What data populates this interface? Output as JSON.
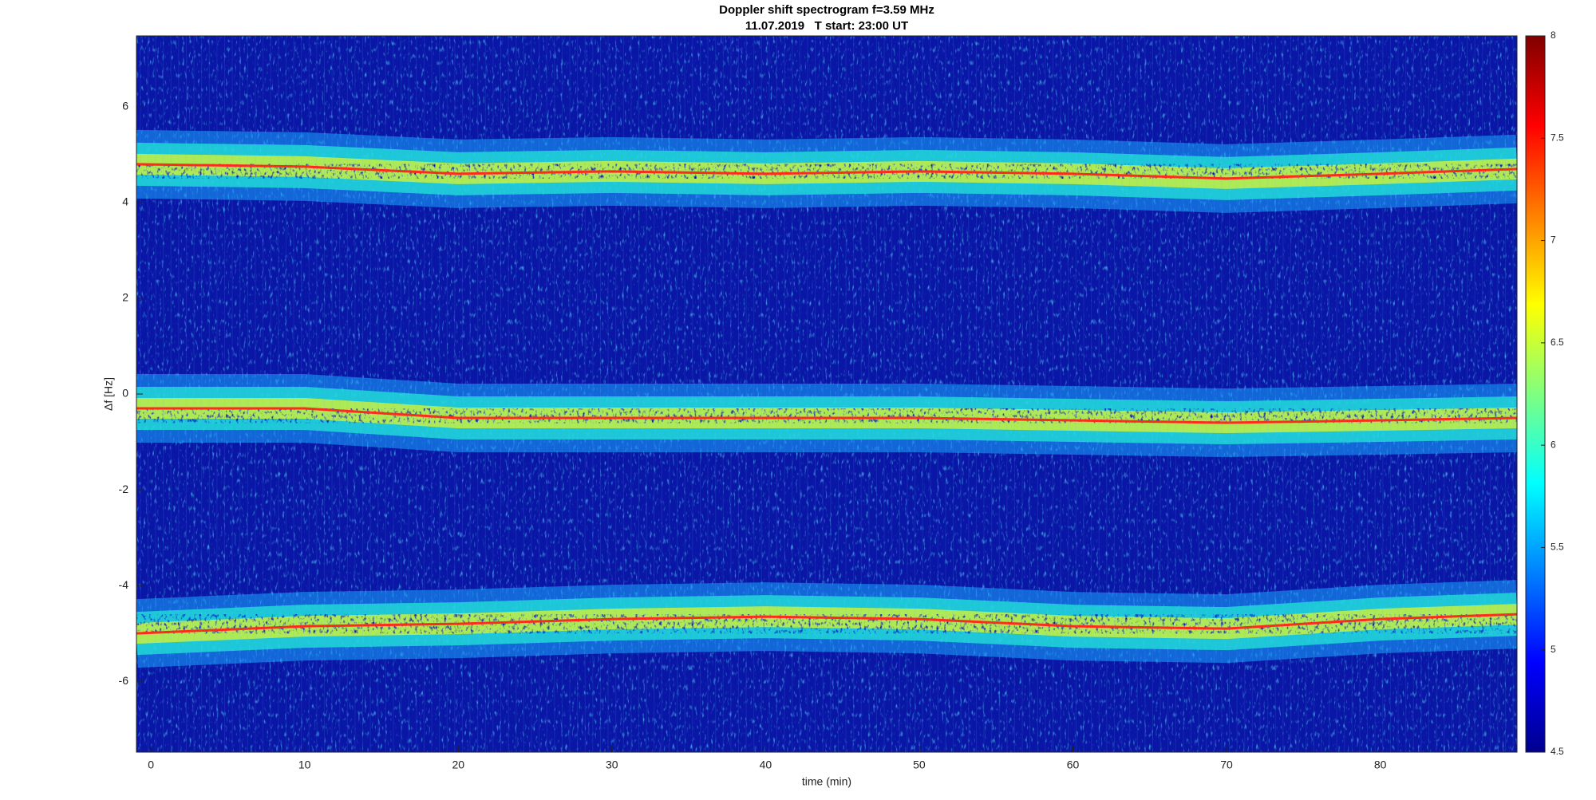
{
  "chart_data": {
    "type": "spectrogram",
    "title": "Doppler shift spectrogram f=3.59 MHz",
    "subtitle": "11.07.2019   T start: 23:00 UT",
    "x_label": "time (min)",
    "y_label": "Δf [Hz]",
    "xlim": [
      -0.94,
      88.9
    ],
    "ylim": [
      -7.48,
      7.48
    ],
    "xticks": [
      0,
      10,
      20,
      30,
      40,
      50,
      60,
      70,
      80
    ],
    "yticks": [
      -6,
      -4,
      -2,
      0,
      2,
      4,
      6
    ],
    "grid": false,
    "x": [
      -0.94,
      10,
      20,
      30,
      40,
      50,
      60,
      70,
      80,
      88.9
    ],
    "series": [
      {
        "color": "#ff2a1a",
        "values": [
          4.8,
          4.75,
          4.6,
          4.65,
          4.6,
          4.65,
          4.6,
          4.5,
          4.6,
          4.7
        ]
      },
      {
        "color": "#ff2a1a",
        "values": [
          -0.3,
          -0.3,
          -0.5,
          -0.5,
          -0.5,
          -0.5,
          -0.55,
          -0.6,
          -0.55,
          -0.5
        ]
      },
      {
        "color": "#ff2a1a",
        "values": [
          -5.0,
          -4.85,
          -4.8,
          -4.7,
          -4.65,
          -4.7,
          -4.85,
          -4.9,
          -4.7,
          -4.6
        ]
      }
    ],
    "colorbar": {
      "colormap": "jet",
      "lim": [
        4.5,
        8
      ],
      "ticks": [
        4.5,
        5,
        5.5,
        6,
        6.5,
        7,
        7.5,
        8
      ]
    }
  }
}
